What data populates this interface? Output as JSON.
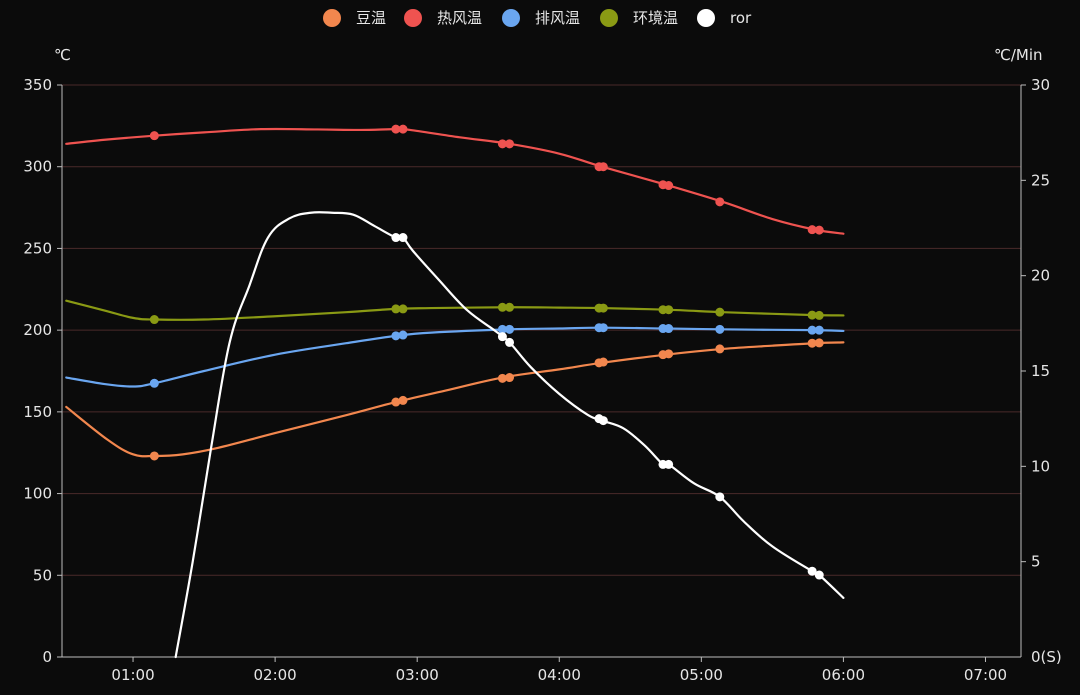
{
  "chart_data": {
    "type": "line",
    "x_ticks": [
      "01:00",
      "02:00",
      "03:00",
      "04:00",
      "05:00",
      "06:00",
      "07:00"
    ],
    "x_range_min": [
      0.5,
      7.25
    ],
    "left_axis": {
      "unit": "℃",
      "ylim": [
        0,
        350
      ],
      "ticks": [
        0,
        50,
        100,
        150,
        200,
        250,
        300,
        350
      ]
    },
    "right_axis": {
      "unit": "℃/Min",
      "ylim": [
        0,
        30
      ],
      "ticks": [
        5,
        10,
        15,
        20,
        25,
        30
      ],
      "zero_label": "0(S)"
    },
    "grid": true,
    "legend": "top",
    "series": [
      {
        "name": "豆温",
        "color": "#f2874e",
        "axis": "left",
        "points": [
          [
            0.53,
            153
          ],
          [
            0.82,
            133
          ],
          [
            1.0,
            124
          ],
          [
            1.15,
            123
          ],
          [
            1.35,
            124
          ],
          [
            1.6,
            128
          ],
          [
            2.0,
            137
          ],
          [
            2.5,
            148
          ],
          [
            2.85,
            156
          ],
          [
            3.2,
            163
          ],
          [
            3.6,
            171
          ],
          [
            4.0,
            176
          ],
          [
            4.3,
            180
          ],
          [
            4.75,
            185
          ],
          [
            5.15,
            188.5
          ],
          [
            5.5,
            190.5
          ],
          [
            5.8,
            192
          ],
          [
            6.0,
            192.5
          ]
        ],
        "markers": [
          [
            1.15,
            123
          ],
          [
            2.85,
            156
          ],
          [
            2.9,
            157
          ],
          [
            3.6,
            170.5
          ],
          [
            3.65,
            171
          ],
          [
            4.28,
            180
          ],
          [
            4.31,
            180.5
          ],
          [
            4.73,
            185
          ],
          [
            4.77,
            185.5
          ],
          [
            5.13,
            188.5
          ],
          [
            5.78,
            192
          ],
          [
            5.83,
            192.2
          ]
        ]
      },
      {
        "name": "热风温",
        "color": "#ef5350",
        "axis": "left",
        "points": [
          [
            0.53,
            314
          ],
          [
            0.8,
            316.5
          ],
          [
            1.15,
            319
          ],
          [
            1.5,
            321
          ],
          [
            1.9,
            323
          ],
          [
            2.3,
            322.8
          ],
          [
            2.6,
            322.5
          ],
          [
            2.85,
            323
          ],
          [
            2.95,
            322.5
          ],
          [
            3.3,
            318
          ],
          [
            3.65,
            314
          ],
          [
            4.0,
            308
          ],
          [
            4.3,
            300
          ],
          [
            4.75,
            289
          ],
          [
            5.15,
            278.5
          ],
          [
            5.5,
            268
          ],
          [
            5.8,
            261.5
          ],
          [
            6.0,
            259
          ]
        ],
        "markers": [
          [
            1.15,
            319
          ],
          [
            2.85,
            323
          ],
          [
            2.9,
            323
          ],
          [
            3.6,
            314
          ],
          [
            3.65,
            314
          ],
          [
            4.28,
            300
          ],
          [
            4.31,
            300
          ],
          [
            4.73,
            289
          ],
          [
            4.77,
            288.5
          ],
          [
            5.13,
            278.5
          ],
          [
            5.78,
            261.5
          ],
          [
            5.83,
            261.2
          ]
        ]
      },
      {
        "name": "排风温",
        "color": "#6aa6f0",
        "axis": "left",
        "points": [
          [
            0.53,
            171
          ],
          [
            0.8,
            167
          ],
          [
            1.0,
            165.5
          ],
          [
            1.15,
            167.5
          ],
          [
            1.5,
            175
          ],
          [
            2.0,
            185
          ],
          [
            2.5,
            192
          ],
          [
            2.85,
            196.5
          ],
          [
            3.1,
            198.5
          ],
          [
            3.65,
            200.5
          ],
          [
            4.0,
            201
          ],
          [
            4.3,
            201.5
          ],
          [
            4.75,
            201
          ],
          [
            5.15,
            200.5
          ],
          [
            5.5,
            200.2
          ],
          [
            5.8,
            200
          ],
          [
            6.0,
            199.5
          ]
        ],
        "markers": [
          [
            1.15,
            167.5
          ],
          [
            2.85,
            196.5
          ],
          [
            2.9,
            197
          ],
          [
            3.6,
            200.5
          ],
          [
            3.65,
            200.5
          ],
          [
            4.28,
            201.5
          ],
          [
            4.31,
            201.5
          ],
          [
            4.73,
            201
          ],
          [
            4.77,
            201
          ],
          [
            5.13,
            200.5
          ],
          [
            5.78,
            200
          ],
          [
            5.83,
            200
          ]
        ]
      },
      {
        "name": "环境温",
        "color": "#8a9a14",
        "axis": "left",
        "points": [
          [
            0.53,
            218
          ],
          [
            0.8,
            212
          ],
          [
            1.0,
            207.5
          ],
          [
            1.15,
            206.5
          ],
          [
            1.5,
            206.5
          ],
          [
            2.0,
            208.5
          ],
          [
            2.5,
            211
          ],
          [
            2.85,
            213
          ],
          [
            3.1,
            213.5
          ],
          [
            3.65,
            214
          ],
          [
            4.0,
            213.8
          ],
          [
            4.3,
            213.5
          ],
          [
            4.75,
            212.5
          ],
          [
            5.15,
            211
          ],
          [
            5.5,
            210
          ],
          [
            5.8,
            209.2
          ],
          [
            6.0,
            209
          ]
        ],
        "markers": [
          [
            1.15,
            206.5
          ],
          [
            2.85,
            213
          ],
          [
            2.9,
            213
          ],
          [
            3.6,
            214
          ],
          [
            3.65,
            214
          ],
          [
            4.28,
            213.5
          ],
          [
            4.31,
            213.5
          ],
          [
            4.73,
            212.5
          ],
          [
            4.77,
            212.5
          ],
          [
            5.13,
            211
          ],
          [
            5.78,
            209.2
          ],
          [
            5.83,
            209
          ]
        ]
      },
      {
        "name": "ror",
        "color": "#ffffff",
        "axis": "right",
        "points": [
          [
            1.3,
            0
          ],
          [
            1.42,
            5
          ],
          [
            1.55,
            11
          ],
          [
            1.68,
            16.5
          ],
          [
            1.82,
            19.5
          ],
          [
            1.95,
            22
          ],
          [
            2.1,
            23
          ],
          [
            2.25,
            23.3
          ],
          [
            2.4,
            23.3
          ],
          [
            2.55,
            23.2
          ],
          [
            2.7,
            22.6
          ],
          [
            2.85,
            22
          ],
          [
            2.9,
            22
          ],
          [
            2.97,
            21.3
          ],
          [
            3.15,
            19.8
          ],
          [
            3.35,
            18.2
          ],
          [
            3.55,
            17.1
          ],
          [
            3.65,
            16.5
          ],
          [
            3.8,
            15.2
          ],
          [
            4.0,
            13.8
          ],
          [
            4.2,
            12.7
          ],
          [
            4.3,
            12.4
          ],
          [
            4.45,
            12
          ],
          [
            4.6,
            11.1
          ],
          [
            4.73,
            10.1
          ],
          [
            4.77,
            10.1
          ],
          [
            4.95,
            9.1
          ],
          [
            5.13,
            8.4
          ],
          [
            5.3,
            7.1
          ],
          [
            5.5,
            5.8
          ],
          [
            5.78,
            4.5
          ],
          [
            5.83,
            4.3
          ],
          [
            6.0,
            3.1
          ]
        ],
        "markers": [
          [
            2.85,
            22
          ],
          [
            2.9,
            22
          ],
          [
            3.6,
            16.8
          ],
          [
            3.65,
            16.5
          ],
          [
            4.28,
            12.5
          ],
          [
            4.31,
            12.4
          ],
          [
            4.73,
            10.1
          ],
          [
            4.77,
            10.1
          ],
          [
            5.13,
            8.4
          ],
          [
            5.78,
            4.5
          ],
          [
            5.83,
            4.3
          ]
        ]
      }
    ]
  }
}
